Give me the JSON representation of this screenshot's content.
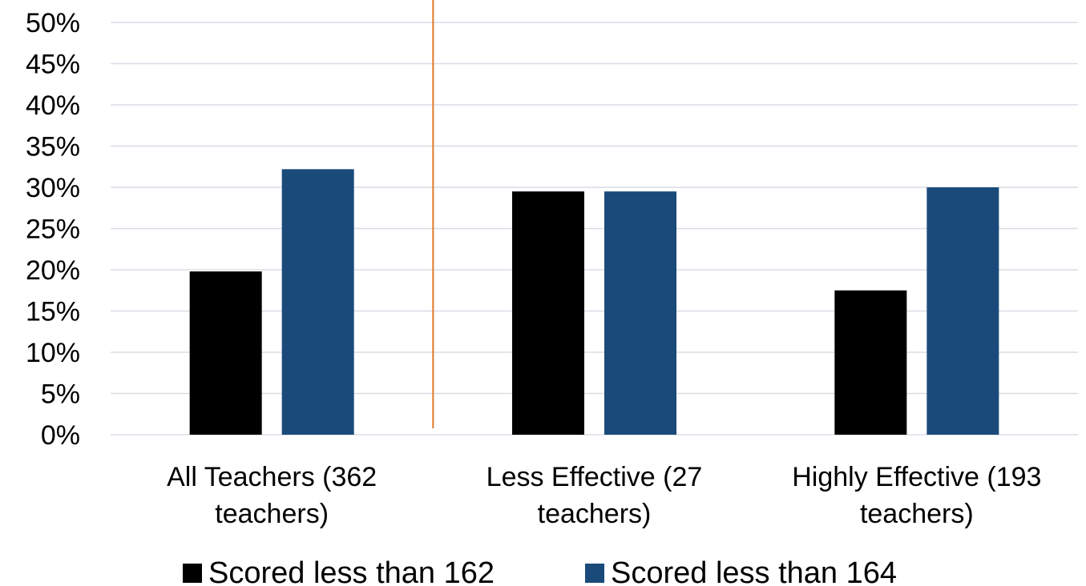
{
  "chart_data": {
    "type": "bar",
    "categories": [
      [
        "All Teachers (362",
        "teachers)"
      ],
      [
        "Less Effective (27",
        "teachers)"
      ],
      [
        "Highly Effective (193",
        "teachers)"
      ]
    ],
    "series": [
      {
        "name": "Scored less than 162",
        "color": "#000000",
        "values": [
          19.8,
          29.5,
          17.5
        ]
      },
      {
        "name": "Scored less than 164",
        "color": "#1a4a7a",
        "values": [
          32.2,
          29.5,
          30.0
        ]
      }
    ],
    "ylim": [
      0,
      50
    ],
    "yticks": [
      "0%",
      "5%",
      "10%",
      "15%",
      "20%",
      "25%",
      "30%",
      "35%",
      "40%",
      "45%",
      "50%"
    ],
    "grid": true,
    "legend_position": "bottom",
    "divider_color": "#e07b2a",
    "gridline_color": "#d9dde6"
  }
}
